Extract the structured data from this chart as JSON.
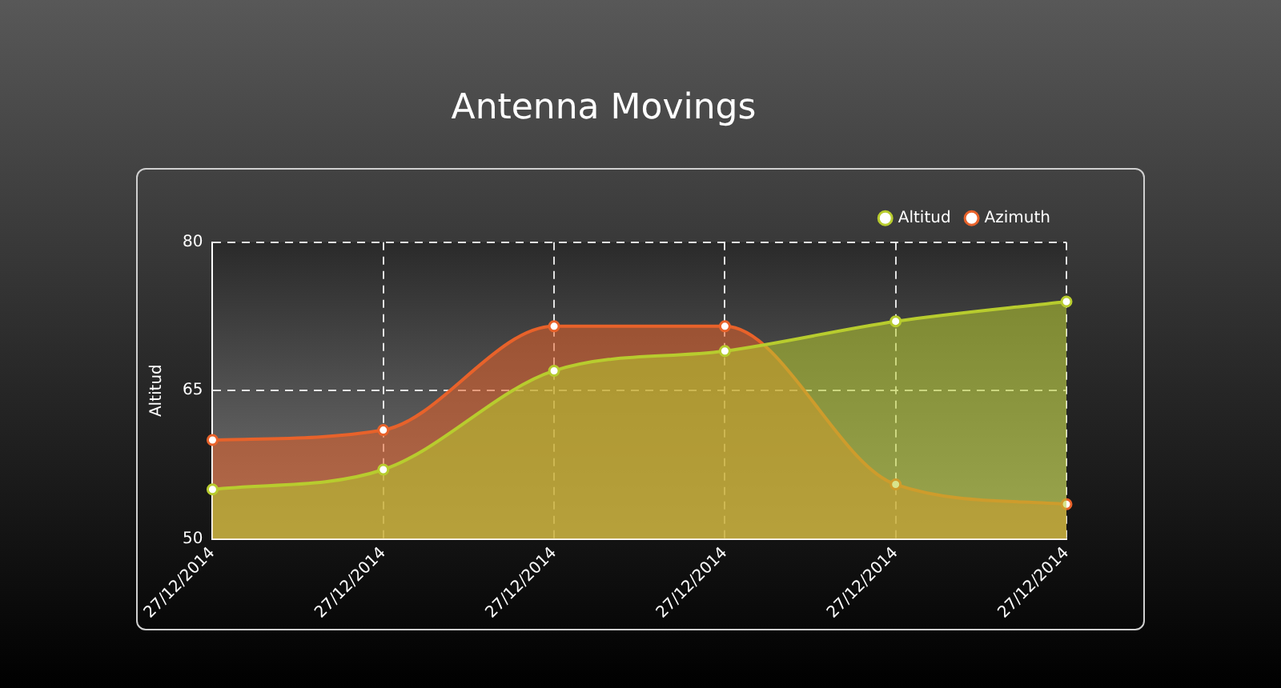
{
  "chart_data": {
    "type": "area",
    "title": "Antenna Movings",
    "ylabel": "Altitud",
    "categories": [
      "27/12/2014",
      "27/12/2014",
      "27/12/2014",
      "27/12/2014",
      "27/12/2014",
      "27/12/2014"
    ],
    "series": [
      {
        "name": "Altitud",
        "color": "#b8cc2e",
        "values": [
          55,
          57,
          67,
          69,
          72,
          74
        ]
      },
      {
        "name": "Azimuth",
        "color": "#e8622a",
        "values": [
          60,
          61,
          71.5,
          71.5,
          55.5,
          53.5
        ]
      }
    ],
    "ylim": [
      50,
      80
    ],
    "yticks": [
      50,
      65,
      80
    ],
    "grid": true,
    "legend": "top right",
    "marker": "circle",
    "line_style": "solid"
  }
}
